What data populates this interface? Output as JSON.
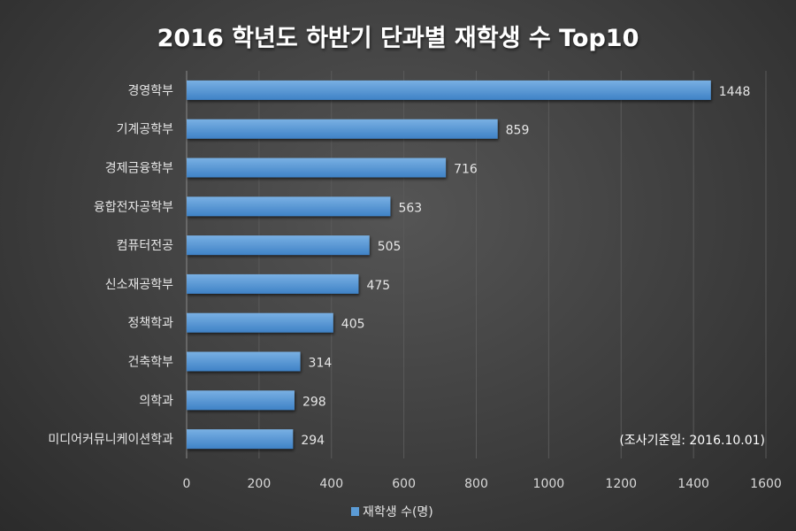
{
  "chart_data": {
    "type": "bar",
    "orientation": "horizontal",
    "title": "2016 학년도 하반기 단과별 재학생 수 Top10",
    "categories": [
      "경영학부",
      "기계공학부",
      "경제금융학부",
      "융합전자공학부",
      "컴퓨터전공",
      "신소재공학부",
      "정책학과",
      "건축학부",
      "의학과",
      "미디어커뮤니케이션학과"
    ],
    "series": [
      {
        "name": "재학생 수(명)",
        "values": [
          1448,
          859,
          716,
          563,
          505,
          475,
          405,
          314,
          298,
          294
        ],
        "color": "#5b9bd5"
      }
    ],
    "xlim": [
      0,
      1600
    ],
    "xticks": [
      0,
      200,
      400,
      600,
      800,
      1000,
      1200,
      1400,
      1600
    ],
    "grid": true,
    "legend": "bottom",
    "annotation": "(조사기준일: 2016.10.01)"
  }
}
